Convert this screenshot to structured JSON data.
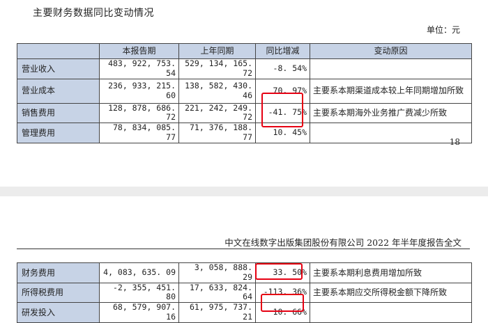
{
  "section_title": "主要财务数据同比变动情况",
  "unit": "单位：元",
  "page_number": "18",
  "running_header": "中文在线数字出版集团股份有限公司 2022 年半年度报告全文",
  "columns": [
    "",
    "本报告期",
    "上年同期",
    "同比增减",
    "变动原因"
  ],
  "rows_top": [
    {
      "item": "营业收入",
      "current": "483, 922, 753. 54",
      "previous": "529, 134, 165. 72",
      "change": "-8. 54%",
      "reason": ""
    },
    {
      "item": "营业成本",
      "current": "236, 933, 215. 60",
      "previous": "138, 582, 430. 46",
      "change": "70. 97%",
      "reason": "主要系本期渠道成本较上年同期增加所致"
    },
    {
      "item": "销售费用",
      "current": "128, 878, 686. 72",
      "previous": "221, 242, 249. 72",
      "change": "-41. 75%",
      "reason": "主要系本期海外业务推广费减少所致"
    },
    {
      "item": "管理费用",
      "current": "78, 834, 085. 77",
      "previous": "71, 376, 188. 77",
      "change": "10. 45%",
      "reason": ""
    }
  ],
  "rows_bottom": [
    {
      "item": "财务费用",
      "current": "4, 083, 635. 09",
      "previous": "3, 058, 888. 29",
      "change": "33. 50%",
      "reason": "主要系本期利息费用增加所致"
    },
    {
      "item": "所得税费用",
      "current": "-2, 355, 451. 80",
      "previous": "17, 633, 824. 64",
      "change": "-113. 36%",
      "reason": "主要系本期应交所得税金额下降所致"
    },
    {
      "item": "研发投入",
      "current": "68, 579, 907. 16",
      "previous": "61, 975, 737. 21",
      "change": "10. 66%",
      "reason": ""
    }
  ],
  "highlight_color": "#e60012"
}
